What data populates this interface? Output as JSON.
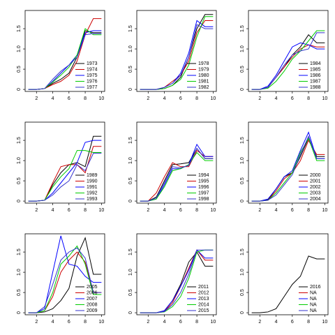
{
  "chart_data": [
    {
      "type": "line",
      "x": [
        1,
        2,
        3,
        4,
        5,
        6,
        7,
        8,
        9,
        10
      ],
      "xlim": [
        0.6,
        10.4
      ],
      "ylim": [
        -0.05,
        1.95
      ],
      "xticks": [
        2,
        4,
        6,
        8,
        10
      ],
      "yticks": [
        0,
        {
          "value": 0.5,
          "label": "0.5"
        },
        {
          "value": 1,
          "label": "1.0"
        },
        1.5
      ],
      "legend": "bottom-right",
      "series": [
        {
          "name": "1973",
          "color": "#000000",
          "values": [
            0,
            0,
            0.02,
            0.15,
            0.25,
            0.4,
            0.8,
            1.45,
            1.4,
            1.4
          ]
        },
        {
          "name": "1974",
          "color": "#cc0000",
          "values": [
            0,
            0,
            0.02,
            0.12,
            0.2,
            0.35,
            0.7,
            1.35,
            1.75,
            1.75
          ]
        },
        {
          "name": "1975",
          "color": "#0000ff",
          "values": [
            0,
            0,
            0.02,
            0.2,
            0.4,
            0.6,
            0.85,
            1.4,
            1.45,
            1.45
          ]
        },
        {
          "name": "1976",
          "color": "#00cc00",
          "values": [
            0,
            0,
            0.02,
            0.18,
            0.35,
            0.55,
            0.85,
            1.5,
            1.35,
            1.35
          ]
        },
        {
          "name": "1977",
          "color": "#3333cc",
          "values": [
            0,
            0,
            0.02,
            0.25,
            0.45,
            0.6,
            0.8,
            1.35,
            1.38,
            1.38
          ]
        }
      ]
    },
    {
      "type": "line",
      "x": [
        1,
        2,
        3,
        4,
        5,
        6,
        7,
        8,
        9,
        10
      ],
      "xlim": [
        0.6,
        10.4
      ],
      "ylim": [
        -0.05,
        1.95
      ],
      "xticks": [
        2,
        4,
        6,
        8,
        10
      ],
      "yticks": [
        0,
        {
          "value": 0.5,
          "label": "0.5"
        },
        {
          "value": 1,
          "label": "1.0"
        },
        1.5
      ],
      "legend": "bottom-right",
      "series": [
        {
          "name": "1978",
          "color": "#000000",
          "values": [
            0,
            0,
            0,
            0.02,
            0.1,
            0.3,
            0.8,
            1.5,
            1.85,
            1.85
          ]
        },
        {
          "name": "1979",
          "color": "#cc0000",
          "values": [
            0,
            0,
            0,
            0.05,
            0.2,
            0.35,
            0.7,
            1.4,
            1.7,
            1.7
          ]
        },
        {
          "name": "1980",
          "color": "#0000ff",
          "values": [
            0,
            0,
            0,
            0.05,
            0.15,
            0.4,
            0.9,
            1.7,
            1.55,
            1.55
          ]
        },
        {
          "name": "1981",
          "color": "#00cc00",
          "values": [
            0,
            0,
            0,
            0.02,
            0.1,
            0.25,
            0.6,
            1.3,
            1.8,
            1.8
          ]
        },
        {
          "name": "1982",
          "color": "#3333cc",
          "values": [
            0,
            0,
            0,
            0.05,
            0.15,
            0.35,
            0.8,
            1.6,
            1.5,
            1.5
          ]
        }
      ]
    },
    {
      "type": "line",
      "x": [
        1,
        2,
        3,
        4,
        5,
        6,
        7,
        8,
        9,
        10
      ],
      "xlim": [
        0.6,
        10.4
      ],
      "ylim": [
        -0.05,
        1.95
      ],
      "xticks": [
        2,
        4,
        6,
        8,
        10
      ],
      "yticks": [
        0,
        {
          "value": 0.5,
          "label": "0.5"
        },
        {
          "value": 1,
          "label": "1.0"
        },
        1.5
      ],
      "legend": "bottom-right",
      "series": [
        {
          "name": "1984",
          "color": "#000000",
          "values": [
            0,
            0,
            0.05,
            0.3,
            0.55,
            0.85,
            1.05,
            1.35,
            1.15,
            1.15
          ]
        },
        {
          "name": "1985",
          "color": "#cc0000",
          "values": [
            0,
            0,
            0.05,
            0.3,
            0.55,
            0.8,
            1.0,
            1.1,
            1.05,
            1.05
          ]
        },
        {
          "name": "1986",
          "color": "#0000ff",
          "values": [
            0,
            0,
            0.08,
            0.35,
            0.7,
            1.05,
            1.15,
            1.1,
            1.0,
            1.0
          ]
        },
        {
          "name": "1987",
          "color": "#00cc00",
          "values": [
            0,
            0,
            0.03,
            0.2,
            0.45,
            0.75,
            0.95,
            1.2,
            1.45,
            1.45
          ]
        },
        {
          "name": "1988",
          "color": "#3333cc",
          "values": [
            0,
            0,
            0.05,
            0.3,
            0.6,
            0.85,
            0.95,
            1.0,
            1.4,
            1.4
          ]
        }
      ]
    },
    {
      "type": "line",
      "x": [
        1,
        2,
        3,
        4,
        5,
        6,
        7,
        8,
        9,
        10
      ],
      "xlim": [
        0.6,
        10.4
      ],
      "ylim": [
        -0.05,
        1.95
      ],
      "xticks": [
        2,
        4,
        6,
        8,
        10
      ],
      "yticks": [
        0,
        {
          "value": 0.5,
          "label": "0.5"
        },
        {
          "value": 1,
          "label": "1.0"
        },
        1.5
      ],
      "legend": "bottom-right",
      "series": [
        {
          "name": "1989",
          "color": "#000000",
          "values": [
            0,
            0,
            0.02,
            0.4,
            0.7,
            0.9,
            0.95,
            0.85,
            1.6,
            1.6
          ]
        },
        {
          "name": "1990",
          "color": "#cc0000",
          "values": [
            0,
            0,
            0.02,
            0.45,
            0.85,
            0.9,
            0.9,
            0.7,
            1.35,
            1.35
          ]
        },
        {
          "name": "1991",
          "color": "#0000ff",
          "values": [
            0,
            0,
            0.02,
            0.2,
            0.45,
            0.7,
            0.95,
            1.45,
            1.5,
            1.5
          ]
        },
        {
          "name": "1992",
          "color": "#00cc00",
          "values": [
            0,
            0,
            0.02,
            0.35,
            0.6,
            0.8,
            1.25,
            1.25,
            1.2,
            1.2
          ]
        },
        {
          "name": "1993",
          "color": "#3333cc",
          "values": [
            0,
            0,
            0.02,
            0.15,
            0.35,
            0.5,
            0.9,
            0.75,
            1.18,
            1.18
          ]
        }
      ]
    },
    {
      "type": "line",
      "x": [
        1,
        2,
        3,
        4,
        5,
        6,
        7,
        8,
        9,
        10
      ],
      "xlim": [
        0.6,
        10.4
      ],
      "ylim": [
        -0.05,
        1.95
      ],
      "xticks": [
        2,
        4,
        6,
        8,
        10
      ],
      "yticks": [
        0,
        {
          "value": 0.5,
          "label": "0.5"
        },
        {
          "value": 1,
          "label": "1.0"
        },
        1.5
      ],
      "legend": "bottom-right",
      "series": [
        {
          "name": "1994",
          "color": "#000000",
          "values": [
            0,
            0,
            0.1,
            0.5,
            0.9,
            0.92,
            0.95,
            1.3,
            1.05,
            1.05
          ]
        },
        {
          "name": "1995",
          "color": "#cc0000",
          "values": [
            0,
            0,
            0.2,
            0.6,
            0.95,
            0.85,
            0.85,
            1.25,
            1.1,
            1.1
          ]
        },
        {
          "name": "1996",
          "color": "#0000ff",
          "values": [
            0,
            0,
            0.05,
            0.4,
            0.8,
            0.8,
            0.9,
            1.4,
            1.1,
            1.1
          ]
        },
        {
          "name": "1997",
          "color": "#00cc00",
          "values": [
            0,
            0,
            0.05,
            0.35,
            0.75,
            0.8,
            0.9,
            1.2,
            1.0,
            1.0
          ]
        },
        {
          "name": "1998",
          "color": "#3333cc",
          "values": [
            0,
            0,
            0.08,
            0.45,
            0.85,
            0.82,
            0.88,
            1.3,
            1.05,
            1.05
          ]
        }
      ]
    },
    {
      "type": "line",
      "x": [
        1,
        2,
        3,
        4,
        5,
        6,
        7,
        8,
        9,
        10
      ],
      "xlim": [
        0.6,
        10.4
      ],
      "ylim": [
        -0.05,
        1.95
      ],
      "xticks": [
        2,
        4,
        6,
        8,
        10
      ],
      "yticks": [
        0,
        {
          "value": 0.5,
          "label": "0.5"
        },
        {
          "value": 1,
          "label": "1.0"
        },
        1.5
      ],
      "legend": "bottom-right",
      "series": [
        {
          "name": "2000",
          "color": "#000000",
          "values": [
            0,
            0,
            0.03,
            0.3,
            0.6,
            0.7,
            1.1,
            1.55,
            1.1,
            1.1
          ]
        },
        {
          "name": "2001",
          "color": "#cc0000",
          "values": [
            0,
            0,
            0.02,
            0.25,
            0.55,
            0.7,
            1.0,
            1.5,
            1.15,
            1.15
          ]
        },
        {
          "name": "2002",
          "color": "#0000ff",
          "values": [
            0,
            0,
            0.05,
            0.3,
            0.6,
            0.75,
            1.25,
            1.7,
            1.05,
            1.05
          ]
        },
        {
          "name": "2003",
          "color": "#00cc00",
          "values": [
            0,
            0,
            0.02,
            0.2,
            0.45,
            0.7,
            1.2,
            1.55,
            1.0,
            1.0
          ]
        },
        {
          "name": "2004",
          "color": "#3333cc",
          "values": [
            0,
            0,
            0.02,
            0.15,
            0.4,
            0.65,
            1.15,
            1.6,
            1.05,
            1.05
          ]
        }
      ]
    },
    {
      "type": "line",
      "x": [
        1,
        2,
        3,
        4,
        5,
        6,
        7,
        8,
        9,
        10
      ],
      "xlim": [
        0.6,
        10.4
      ],
      "ylim": [
        -0.05,
        1.95
      ],
      "xticks": [
        2,
        4,
        6,
        8,
        10
      ],
      "yticks": [
        0,
        {
          "value": 0.5,
          "label": "0.5"
        },
        {
          "value": 1,
          "label": "1.0"
        },
        1.5
      ],
      "legend": "bottom-right",
      "series": [
        {
          "name": "2005",
          "color": "#000000",
          "values": [
            0,
            0,
            0.02,
            0.1,
            0.3,
            0.6,
            1.4,
            1.85,
            0.95,
            0.95
          ]
        },
        {
          "name": "2006",
          "color": "#cc0000",
          "values": [
            0,
            0,
            0.05,
            0.4,
            1.0,
            1.3,
            1.5,
            1.25,
            0.5,
            0.5
          ]
        },
        {
          "name": "2007",
          "color": "#0000ff",
          "values": [
            0,
            0,
            0.1,
            1.0,
            1.9,
            1.2,
            1.15,
            0.9,
            0.75,
            0.75
          ]
        },
        {
          "name": "2008",
          "color": "#00cc00",
          "values": [
            0,
            0,
            0.05,
            0.5,
            1.2,
            1.4,
            1.65,
            1.2,
            0.45,
            0.45
          ]
        },
        {
          "name": "2009",
          "color": "#3333cc",
          "values": [
            0,
            0,
            0.15,
            0.7,
            1.3,
            1.5,
            1.6,
            1.35,
            0.5,
            0.5
          ]
        }
      ]
    },
    {
      "type": "line",
      "x": [
        1,
        2,
        3,
        4,
        5,
        6,
        7,
        8,
        9,
        10
      ],
      "xlim": [
        0.6,
        10.4
      ],
      "ylim": [
        -0.05,
        1.95
      ],
      "xticks": [
        2,
        4,
        6,
        8,
        10
      ],
      "yticks": [
        0,
        {
          "value": 0.5,
          "label": "0.5"
        },
        {
          "value": 1,
          "label": "1.0"
        },
        1.5
      ],
      "legend": "bottom-right",
      "series": [
        {
          "name": "2011",
          "color": "#000000",
          "values": [
            0,
            0,
            0,
            0.05,
            0.3,
            0.7,
            1.25,
            1.5,
            1.15,
            1.15
          ]
        },
        {
          "name": "2012",
          "color": "#cc0000",
          "values": [
            0,
            0,
            0,
            0.03,
            0.25,
            0.65,
            1.1,
            1.55,
            1.3,
            1.3
          ]
        },
        {
          "name": "2013",
          "color": "#0000ff",
          "values": [
            0,
            0,
            0,
            0.05,
            0.3,
            0.65,
            1.05,
            1.55,
            1.35,
            1.35
          ]
        },
        {
          "name": "2014",
          "color": "#00cc00",
          "values": [
            0,
            0,
            0,
            0.02,
            0.15,
            0.4,
            0.85,
            1.5,
            1.55,
            1.55
          ]
        },
        {
          "name": "2015",
          "color": "#3333cc",
          "values": [
            0,
            0,
            0,
            0.03,
            0.2,
            0.5,
            0.95,
            1.55,
            1.55,
            1.55
          ]
        }
      ]
    },
    {
      "type": "line",
      "x": [
        1,
        2,
        3,
        4,
        5,
        6,
        7,
        8,
        9,
        10
      ],
      "xlim": [
        0.6,
        10.4
      ],
      "ylim": [
        -0.05,
        1.95
      ],
      "xticks": [
        2,
        4,
        6,
        8,
        10
      ],
      "yticks": [
        0,
        {
          "value": 0.5,
          "label": "0.5"
        },
        {
          "value": 1,
          "label": "1.0"
        },
        1.5
      ],
      "legend": "bottom-right",
      "series": [
        {
          "name": "2016",
          "color": "#000000",
          "values": [
            0,
            0,
            0.02,
            0.1,
            0.4,
            0.7,
            0.9,
            1.4,
            1.33,
            1.33
          ]
        },
        {
          "name": "NA",
          "color": "#cc0000",
          "values": [
            null,
            null,
            null,
            null,
            null,
            null,
            null,
            null,
            null,
            null
          ]
        },
        {
          "name": "NA",
          "color": "#0000ff",
          "values": [
            null,
            null,
            null,
            null,
            null,
            null,
            null,
            null,
            null,
            null
          ]
        },
        {
          "name": "NA",
          "color": "#00cc00",
          "values": [
            null,
            null,
            null,
            null,
            null,
            null,
            null,
            null,
            null,
            null
          ]
        },
        {
          "name": "NA",
          "color": "#3333cc",
          "values": [
            null,
            null,
            null,
            null,
            null,
            null,
            null,
            null,
            null,
            null
          ]
        }
      ]
    }
  ]
}
